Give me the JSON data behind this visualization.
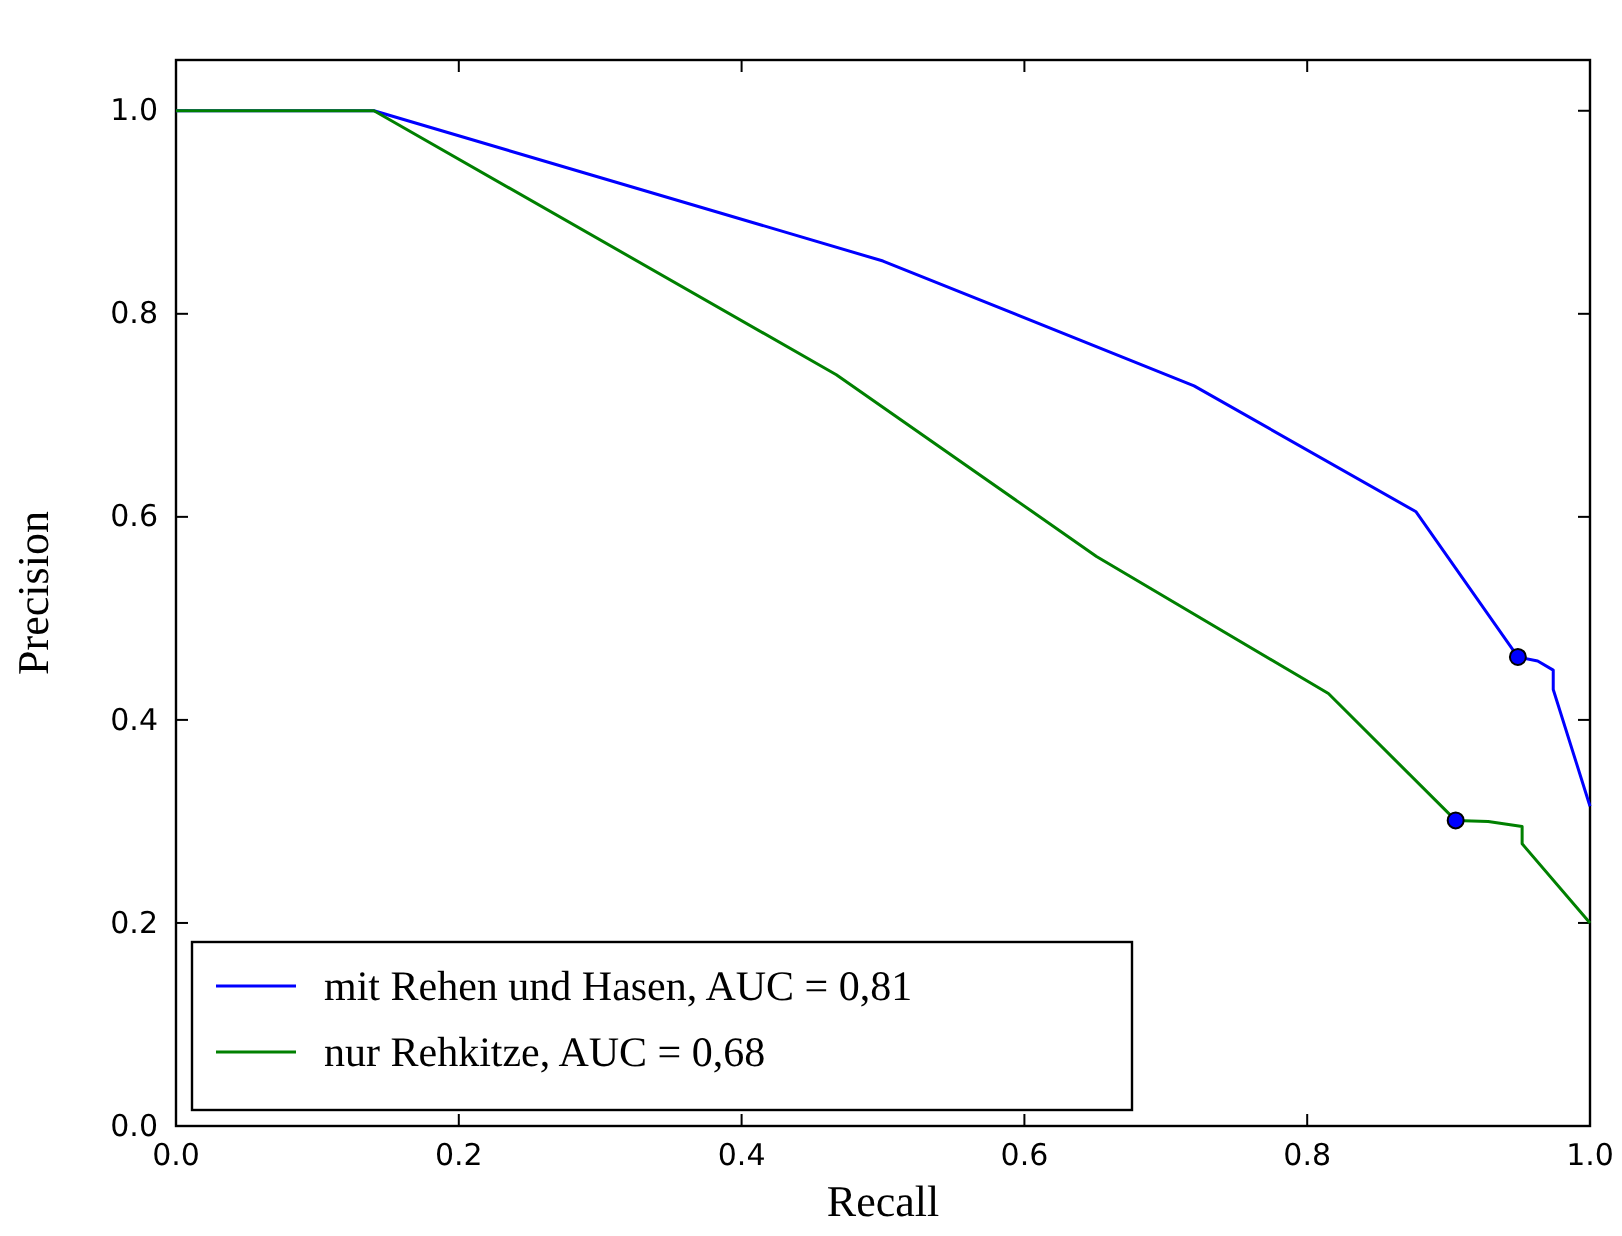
{
  "chart_data": {
    "type": "line",
    "xlabel": "Recall",
    "ylabel": "Precision",
    "xlim": [
      0,
      1
    ],
    "ylim": [
      0,
      1.05
    ],
    "xticks": [
      {
        "value": 0,
        "label": "0.0"
      },
      {
        "value": 0.2,
        "label": "0.2"
      },
      {
        "value": 0.4,
        "label": "0.4"
      },
      {
        "value": 0.6,
        "label": "0.6"
      },
      {
        "value": 0.8,
        "label": "0.8"
      },
      {
        "value": 1,
        "label": "1.0"
      }
    ],
    "yticks": [
      {
        "value": 0,
        "label": "0.0"
      },
      {
        "value": 0.2,
        "label": "0.2"
      },
      {
        "value": 0.4,
        "label": "0.4"
      },
      {
        "value": 0.6,
        "label": "0.6"
      },
      {
        "value": 0.8,
        "label": "0.8"
      },
      {
        "value": 1,
        "label": "1.0"
      }
    ],
    "grid": false,
    "legend": "bottom left",
    "marker": "none",
    "line_style": "solid",
    "series": [
      {
        "name": "mit Rehen und Hasen, AUC = 0,81",
        "color": "#0000ff",
        "x": [
          0,
          0.14,
          0.5,
          0.72,
          0.877,
          0.949,
          0.963,
          0.974,
          0.974,
          1
        ],
        "values": [
          1,
          1,
          0.852,
          0.729,
          0.605,
          0.462,
          0.458,
          0.449,
          0.43,
          0.315
        ]
      },
      {
        "name": "nur Rehkitze, AUC = 0,68",
        "color": "#008000",
        "x": [
          0,
          0.14,
          0.467,
          0.651,
          0.815,
          0.905,
          0.928,
          0.952,
          0.952,
          1
        ],
        "values": [
          1,
          1,
          0.74,
          0.561,
          0.426,
          0.301,
          0.3,
          0.295,
          0.278,
          0.2
        ]
      },
      {
        "type": "scatter",
        "color": "#0000ff",
        "marker": "circle",
        "x": [
          0.949
        ],
        "values": [
          0.462
        ]
      },
      {
        "type": "scatter",
        "color": "#0000ff",
        "marker": "circle",
        "x": [
          0.905
        ],
        "values": [
          0.301
        ]
      }
    ]
  }
}
